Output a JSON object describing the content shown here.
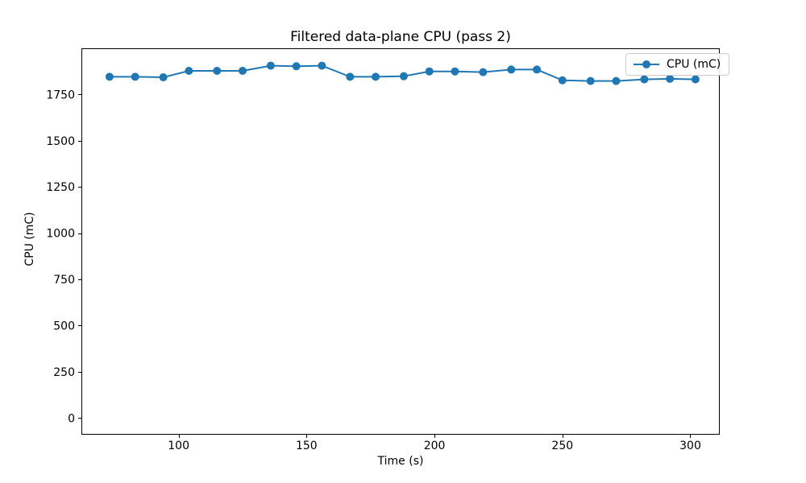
{
  "figure": {
    "background": "#ffffff",
    "text_color": "#000000",
    "spine_color": "#000000",
    "legend_border_color": "#cccccc"
  },
  "chart_data": {
    "type": "line",
    "title": "Filtered data-plane CPU (pass 2)",
    "xlabel": "Time (s)",
    "ylabel": "CPU (mC)",
    "grid": false,
    "legend": {
      "position": "upper right",
      "entries": [
        "CPU (mC)"
      ]
    },
    "xlim": [
      62,
      311.5
    ],
    "ylim": [
      -90,
      2000
    ],
    "x_ticks": [
      100,
      150,
      200,
      250,
      300
    ],
    "y_ticks": [
      0,
      250,
      500,
      750,
      1000,
      1250,
      1500,
      1750
    ],
    "series": [
      {
        "name": "CPU (mC)",
        "color": "#1f77b4",
        "marker": "circle",
        "line_width": 2,
        "marker_radius": 5,
        "x": [
          73,
          83,
          94,
          104,
          115,
          125,
          136,
          146,
          156,
          167,
          177,
          188,
          198,
          208,
          219,
          230,
          240,
          250,
          261,
          271,
          282,
          292,
          302
        ],
        "y": [
          1846,
          1846,
          1843,
          1878,
          1878,
          1878,
          1906,
          1903,
          1906,
          1846,
          1846,
          1849,
          1875,
          1875,
          1871,
          1885,
          1885,
          1827,
          1823,
          1823,
          1832,
          1835,
          1832
        ]
      }
    ]
  }
}
